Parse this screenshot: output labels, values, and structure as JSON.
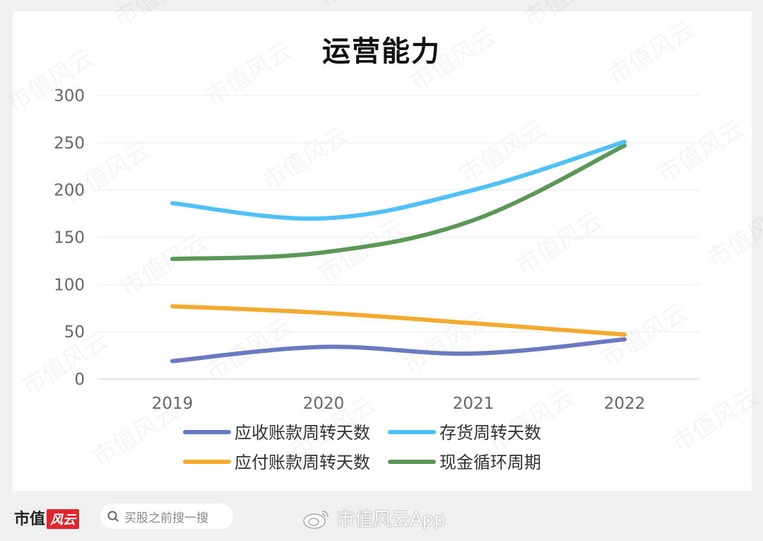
{
  "chart_data": {
    "type": "line",
    "title": "运营能力",
    "categories": [
      "2019",
      "2020",
      "2021",
      "2022"
    ],
    "ylim": [
      0,
      300
    ],
    "yticks": [
      0,
      50,
      100,
      150,
      200,
      250,
      300
    ],
    "grid": true,
    "legend_position": "bottom",
    "series": [
      {
        "name": "应收账款周转天数",
        "color": "#6a79c0",
        "values": [
          19,
          34,
          27,
          42
        ]
      },
      {
        "name": "存货周转天数",
        "color": "#4fc1f7",
        "values": [
          186,
          170,
          200,
          251
        ]
      },
      {
        "name": "应付账款周转天数",
        "color": "#f3aa2e",
        "values": [
          77,
          70,
          59,
          47
        ]
      },
      {
        "name": "现金循环周期",
        "color": "#5b9756",
        "values": [
          127,
          134,
          168,
          247
        ]
      }
    ]
  },
  "watermark": "市值风云",
  "footer": {
    "brand_text": "市值",
    "brand_badge": "风云",
    "search_placeholder": "买股之前搜一搜",
    "weibo_text": "市值风云App"
  }
}
